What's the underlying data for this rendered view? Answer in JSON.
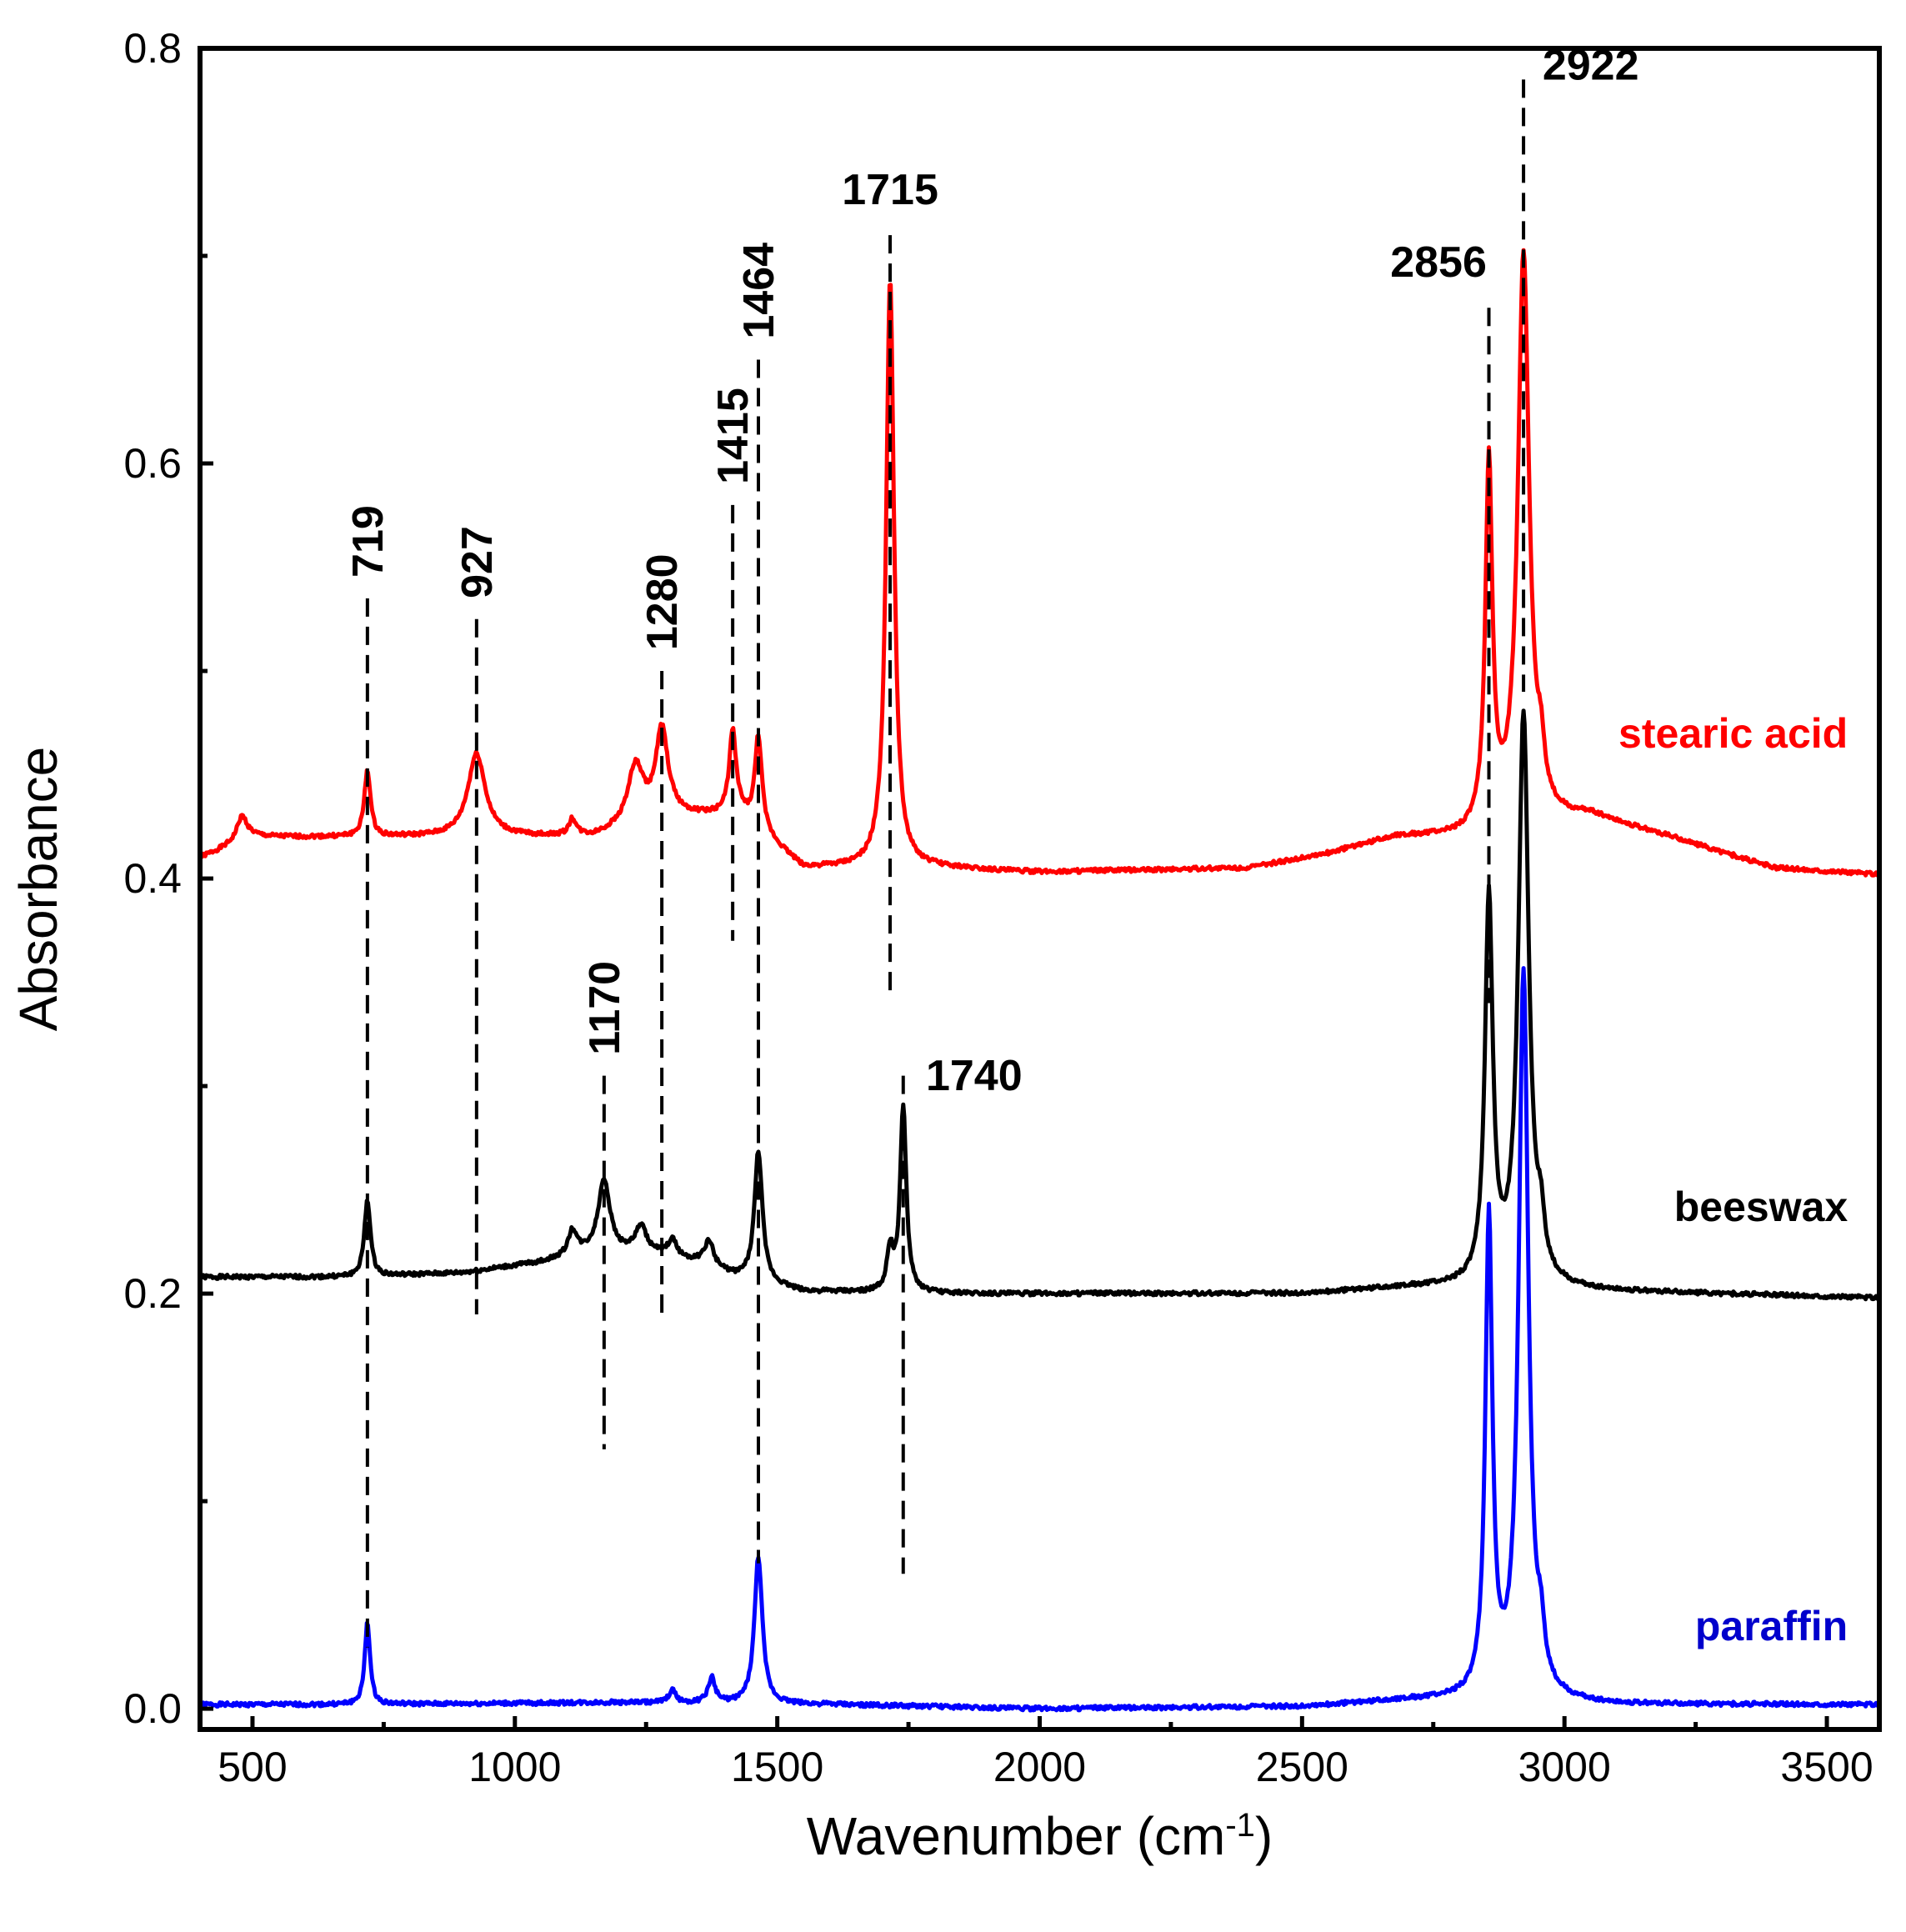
{
  "chart_data": {
    "type": "line",
    "title": "",
    "xlabel": "Wavenumber (cm",
    "xlabel_sup": "-1",
    "xlabel_close": ")",
    "ylabel": "Absorbance",
    "xlim": [
      400,
      3600
    ],
    "ylim": [
      -0.01,
      0.8
    ],
    "xticks": [
      500,
      1000,
      1500,
      2000,
      2500,
      3000,
      3500
    ],
    "xtick_labels": [
      "500",
      "1000",
      "1500",
      "2000",
      "2500",
      "3000",
      "3500"
    ],
    "yticks": [
      0.0,
      0.2,
      0.4,
      0.6,
      0.8
    ],
    "ytick_labels": [
      "0.0",
      "0.2",
      "0.4",
      "0.6",
      "0.8"
    ],
    "grid": false,
    "series": [
      {
        "name": "stearic acid",
        "color": "#ff0000",
        "baseline": 0.405,
        "baseline_points": [
          [
            400,
            0.41
          ],
          [
            500,
            0.42
          ],
          [
            650,
            0.42
          ],
          [
            850,
            0.42
          ],
          [
            1000,
            0.42
          ],
          [
            1150,
            0.42
          ],
          [
            1300,
            0.43
          ],
          [
            1430,
            0.43
          ],
          [
            1550,
            0.405
          ],
          [
            1800,
            0.405
          ],
          [
            2000,
            0.403
          ],
          [
            2400,
            0.405
          ],
          [
            2550,
            0.412
          ],
          [
            2680,
            0.42
          ],
          [
            2800,
            0.42
          ],
          [
            3050,
            0.43
          ],
          [
            3200,
            0.42
          ],
          [
            3400,
            0.405
          ],
          [
            3600,
            0.402
          ]
        ],
        "peaks": [
          [
            480,
            0.012,
            12
          ],
          [
            719,
            0.032,
            7
          ],
          [
            927,
            0.04,
            20
          ],
          [
            1110,
            0.008,
            8
          ],
          [
            1230,
            0.028,
            18
          ],
          [
            1280,
            0.042,
            14
          ],
          [
            1415,
            0.04,
            8
          ],
          [
            1464,
            0.045,
            8
          ],
          [
            1715,
            0.285,
            9
          ],
          [
            2856,
            0.175,
            8
          ],
          [
            2922,
            0.275,
            13
          ],
          [
            2955,
            0.02,
            8
          ]
        ]
      },
      {
        "name": "beeswax",
        "color": "#000000",
        "baseline": 0.205,
        "baseline_points": [
          [
            400,
            0.208
          ],
          [
            700,
            0.208
          ],
          [
            900,
            0.21
          ],
          [
            1050,
            0.215
          ],
          [
            1150,
            0.22
          ],
          [
            1250,
            0.22
          ],
          [
            1350,
            0.215
          ],
          [
            1420,
            0.208
          ],
          [
            1550,
            0.201
          ],
          [
            1800,
            0.2
          ],
          [
            2500,
            0.2
          ],
          [
            2700,
            0.203
          ],
          [
            2800,
            0.203
          ],
          [
            3100,
            0.201
          ],
          [
            3600,
            0.198
          ]
        ],
        "peaks": [
          [
            719,
            0.037,
            7
          ],
          [
            1110,
            0.012,
            10
          ],
          [
            1170,
            0.035,
            13
          ],
          [
            1240,
            0.012,
            12
          ],
          [
            1300,
            0.008,
            10
          ],
          [
            1370,
            0.012,
            10
          ],
          [
            1464,
            0.063,
            9
          ],
          [
            1715,
            0.02,
            7
          ],
          [
            1740,
            0.09,
            7
          ],
          [
            2856,
            0.185,
            9
          ],
          [
            2922,
            0.275,
            12
          ],
          [
            2955,
            0.02,
            8
          ]
        ]
      },
      {
        "name": "paraffin",
        "color": "#0000ff",
        "baseline": 0.002,
        "baseline_points": [
          [
            400,
            0.002
          ],
          [
            700,
            0.002
          ],
          [
            1200,
            0.003
          ],
          [
            1600,
            0.002
          ],
          [
            2000,
            0.0
          ],
          [
            2500,
            0.001
          ],
          [
            2700,
            0.004
          ],
          [
            2800,
            0.004
          ],
          [
            3100,
            0.002
          ],
          [
            3600,
            0.002
          ]
        ],
        "peaks": [
          [
            719,
            0.04,
            6
          ],
          [
            1300,
            0.006,
            8
          ],
          [
            1375,
            0.012,
            8
          ],
          [
            1464,
            0.071,
            9
          ],
          [
            2856,
            0.23,
            8
          ],
          [
            2922,
            0.35,
            11
          ],
          [
            2955,
            0.02,
            8
          ]
        ]
      }
    ],
    "series_labels": [
      {
        "text": "stearic acid",
        "color": "#ff0000",
        "x": 3540,
        "y": 0.463
      },
      {
        "text": "beeswax",
        "color": "#000000",
        "x": 3540,
        "y": 0.235
      },
      {
        "text": "paraffin",
        "color": "#0000cc",
        "x": 3540,
        "y": 0.033
      }
    ],
    "annotations": [
      {
        "label": "719",
        "x": 719,
        "y_top": 0.535,
        "y_bottom": 0.0295,
        "rotated": true,
        "label_x": 719,
        "label_y": 0.545
      },
      {
        "label": "927",
        "x": 927,
        "y_top": 0.525,
        "y_bottom": 0.19,
        "rotated": true,
        "label_x": 927,
        "label_y": 0.535
      },
      {
        "label": "1280",
        "x": 1280,
        "y_top": 0.5,
        "y_bottom": 0.19,
        "rotated": true,
        "label_x": 1280,
        "label_y": 0.51
      },
      {
        "label": "1415",
        "x": 1415,
        "y_top": 0.58,
        "y_bottom": 0.37,
        "rotated": true,
        "label_x": 1415,
        "label_y": 0.59
      },
      {
        "label": "1464",
        "x": 1464,
        "y_top": 0.65,
        "y_bottom": 0.07,
        "rotated": true,
        "label_x": 1464,
        "label_y": 0.66
      },
      {
        "label": "1715",
        "x": 1715,
        "y_top": 0.71,
        "y_bottom": 0.345,
        "rotated": false,
        "label_x": 1715,
        "label_y": 0.725
      },
      {
        "label": "1170",
        "x": 1170,
        "y_top": 0.305,
        "y_bottom": 0.125,
        "rotated": true,
        "label_x": 1170,
        "label_y": 0.315
      },
      {
        "label": "1740",
        "x": 1740,
        "y_top": 0.305,
        "y_bottom": 0.065,
        "rotated": false,
        "label_x": 1875,
        "label_y": 0.298
      },
      {
        "label": "2856",
        "x": 2856,
        "y_top": 0.675,
        "y_bottom": 0.34,
        "rotated": false,
        "label_x": 2760,
        "label_y": 0.69
      },
      {
        "label": "2922",
        "x": 2922,
        "y_top": 0.785,
        "y_bottom": 0.49,
        "rotated": false,
        "label_x": 3050,
        "label_y": 0.785
      }
    ]
  }
}
